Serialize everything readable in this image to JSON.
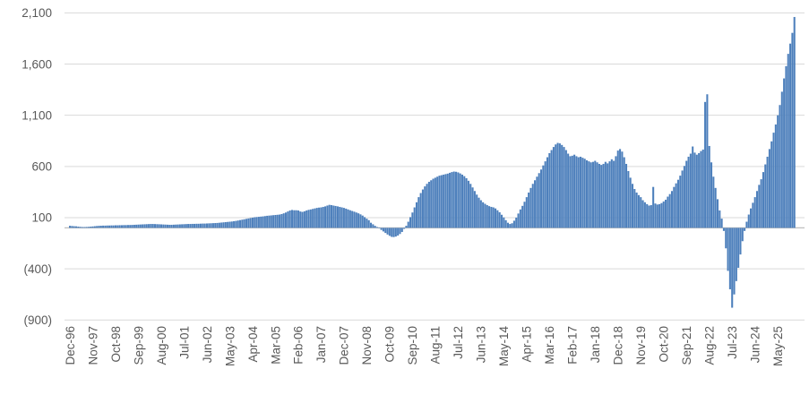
{
  "chart_data": {
    "type": "bar",
    "title": "",
    "subtitle": "",
    "legend": "none",
    "grid": true,
    "x_axis": {
      "unit": "month",
      "first_point": "Dec-96",
      "tick_interval_months": 11,
      "tick_labels": [
        "Dec-96",
        "Nov-97",
        "Oct-98",
        "Sep-99",
        "Aug-00",
        "Jul-01",
        "Jun-02",
        "May-03",
        "Apr-04",
        "Mar-05",
        "Feb-06",
        "Jan-07",
        "Dec-07",
        "Nov-08",
        "Oct-09",
        "Sep-10",
        "Aug-11",
        "Jul-12",
        "Jun-13",
        "May-14",
        "Apr-15",
        "Mar-16",
        "Feb-17",
        "Jan-18",
        "Dec-18",
        "Nov-19",
        "Oct-20",
        "Sep-21",
        "Aug-22",
        "Jul-23",
        "Jun-24",
        "May-25"
      ]
    },
    "y_axis": {
      "ylim": [
        -900,
        2100
      ],
      "tick_step": 500,
      "ticks": [
        {
          "value": 2100,
          "label": "2,100"
        },
        {
          "value": 1600,
          "label": "1,600"
        },
        {
          "value": 1100,
          "label": "1,100"
        },
        {
          "value": 600,
          "label": "600"
        },
        {
          "value": 100,
          "label": "100"
        },
        {
          "value": -400,
          "label": "(400)"
        },
        {
          "value": -900,
          "label": "(900)"
        }
      ]
    },
    "colors": {
      "bar": "#4E80BC",
      "gridline": "#D9D9D9",
      "axis_line": "#BFBFBF",
      "tick_text": "#595959",
      "background": "#FFFFFF"
    },
    "values": [
      20,
      18,
      16,
      15,
      12,
      10,
      8,
      8,
      9,
      10,
      12,
      14,
      16,
      18,
      20,
      21,
      22,
      22,
      23,
      23,
      24,
      24,
      25,
      25,
      26,
      26,
      27,
      27,
      28,
      28,
      29,
      30,
      31,
      32,
      33,
      34,
      35,
      36,
      37,
      38,
      38,
      37,
      36,
      35,
      34,
      33,
      32,
      31,
      30,
      30,
      31,
      32,
      33,
      34,
      35,
      36,
      37,
      38,
      38,
      39,
      39,
      40,
      40,
      41,
      42,
      42,
      43,
      44,
      45,
      46,
      47,
      48,
      50,
      52,
      54,
      56,
      58,
      60,
      62,
      65,
      68,
      72,
      76,
      80,
      84,
      88,
      92,
      96,
      100,
      104,
      106,
      108,
      110,
      112,
      115,
      118,
      120,
      122,
      124,
      126,
      128,
      130,
      135,
      142,
      150,
      160,
      170,
      175,
      172,
      172,
      170,
      160,
      156,
      162,
      170,
      176,
      180,
      185,
      190,
      195,
      198,
      200,
      205,
      210,
      218,
      225,
      222,
      218,
      214,
      210,
      205,
      200,
      195,
      188,
      180,
      172,
      165,
      158,
      150,
      142,
      132,
      120,
      105,
      90,
      75,
      50,
      35,
      20,
      8,
      -5,
      -20,
      -35,
      -50,
      -65,
      -78,
      -88,
      -90,
      -85,
      -75,
      -60,
      -40,
      -10,
      20,
      60,
      105,
      150,
      200,
      250,
      300,
      340,
      375,
      405,
      430,
      450,
      465,
      480,
      490,
      500,
      510,
      515,
      520,
      525,
      530,
      538,
      545,
      550,
      548,
      542,
      532,
      520,
      505,
      485,
      460,
      430,
      395,
      360,
      325,
      295,
      270,
      250,
      235,
      222,
      212,
      205,
      200,
      190,
      172,
      152,
      128,
      102,
      75,
      50,
      38,
      45,
      70,
      100,
      140,
      180,
      215,
      255,
      300,
      345,
      390,
      430,
      465,
      500,
      535,
      570,
      610,
      650,
      690,
      730,
      760,
      790,
      815,
      830,
      825,
      810,
      790,
      760,
      725,
      700,
      705,
      715,
      700,
      690,
      695,
      685,
      675,
      660,
      650,
      640,
      645,
      655,
      640,
      625,
      615,
      625,
      645,
      630,
      650,
      670,
      655,
      700,
      755,
      770,
      745,
      690,
      625,
      555,
      490,
      430,
      380,
      345,
      320,
      300,
      270,
      250,
      232,
      218,
      222,
      400,
      238,
      228,
      232,
      242,
      258,
      275,
      305,
      330,
      360,
      400,
      435,
      470,
      510,
      560,
      605,
      655,
      695,
      725,
      795,
      735,
      715,
      730,
      750,
      765,
      1230,
      1305,
      800,
      640,
      500,
      390,
      280,
      170,
      90,
      -30,
      -200,
      -420,
      -600,
      -780,
      -650,
      -520,
      -390,
      -260,
      -130,
      -30,
      60,
      130,
      190,
      245,
      300,
      360,
      420,
      475,
      545,
      620,
      695,
      770,
      845,
      930,
      1010,
      1100,
      1200,
      1330,
      1460,
      1580,
      1700,
      1800,
      1905,
      2060
    ]
  }
}
